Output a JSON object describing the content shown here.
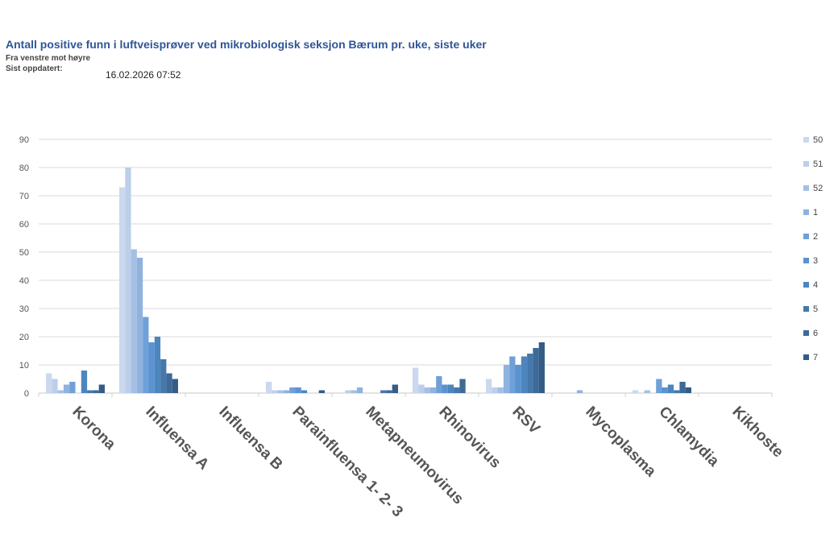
{
  "header": {
    "title": "Antall positive funn i luftveisprøver ved mikrobiologisk seksjon Bærum pr. uke, siste uker",
    "subtitle": "Fra venstre mot høyre",
    "updated_label": "Sist oppdatert:",
    "updated_value": "16.02.2026 07:52"
  },
  "chart_data": {
    "type": "bar",
    "ylim": [
      0,
      90
    ],
    "yticks": [
      0,
      10,
      20,
      30,
      40,
      50,
      60,
      70,
      80,
      90
    ],
    "grid": true,
    "legend_position": "right",
    "categories": [
      "Korona",
      "Influensa A",
      "Influensa B",
      "Parainfluensa 1- 2- 3",
      "Metapneumovirus",
      "Rhinovirus",
      "RSV",
      "Mycoplasma",
      "Chlamydia",
      "Kikhoste"
    ],
    "series": [
      {
        "name": "50",
        "color": "#cbd8ee",
        "values": [
          7,
          73,
          0,
          4,
          0,
          9,
          5,
          0,
          1,
          0
        ]
      },
      {
        "name": "51",
        "color": "#bccfea",
        "values": [
          5,
          80,
          0,
          1,
          1,
          3,
          2,
          0,
          0,
          0
        ]
      },
      {
        "name": "52",
        "color": "#a5c0e4",
        "values": [
          1,
          51,
          0,
          1,
          1,
          2,
          2,
          0,
          1,
          0
        ]
      },
      {
        "name": "1",
        "color": "#8fb2de",
        "values": [
          3,
          48,
          0,
          1,
          2,
          2,
          10,
          1,
          0,
          0
        ]
      },
      {
        "name": "2",
        "color": "#6fa0d8",
        "values": [
          4,
          27,
          0,
          2,
          0,
          6,
          13,
          0,
          5,
          0
        ]
      },
      {
        "name": "3",
        "color": "#5a93cf",
        "values": [
          0,
          18,
          0,
          2,
          0,
          3,
          10,
          0,
          2,
          0
        ]
      },
      {
        "name": "4",
        "color": "#4d85bf",
        "values": [
          8,
          20,
          0,
          1,
          0,
          3,
          13,
          0,
          3,
          0
        ]
      },
      {
        "name": "5",
        "color": "#4678aa",
        "values": [
          1,
          12,
          0,
          0,
          1,
          2,
          14,
          0,
          1,
          0
        ]
      },
      {
        "name": "6",
        "color": "#3d6a99",
        "values": [
          1,
          7,
          0,
          0,
          1,
          5,
          16,
          0,
          4,
          0
        ]
      },
      {
        "name": "7",
        "color": "#345c86",
        "values": [
          3,
          5,
          0,
          1,
          3,
          0,
          18,
          0,
          2,
          0
        ]
      }
    ]
  }
}
